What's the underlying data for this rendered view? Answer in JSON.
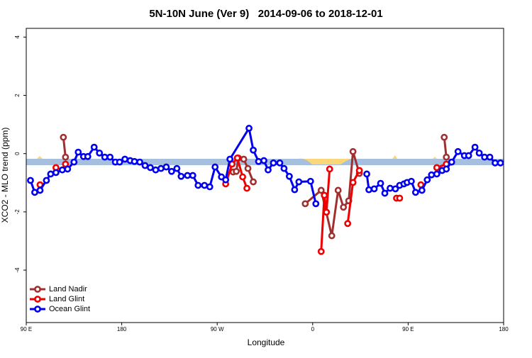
{
  "chart_data": {
    "type": "line",
    "title": "5N-10N June (Ver 9)   2014-09-06 to 2018-12-01",
    "x_label": "Longitude",
    "y_label": "XCO2 - MLO trend (ppm)",
    "xlim": [
      90,
      540
    ],
    "xticks": [
      {
        "value": 90,
        "label": "90 E"
      },
      180,
      {
        "value": 270,
        "label": "90 W"
      },
      {
        "value": 360,
        "label": "0"
      },
      {
        "value": 450,
        "label": "90 E"
      },
      {
        "value": 540,
        "label": "180"
      }
    ],
    "ylim": [
      -5.8,
      4.3
    ],
    "yticks": [
      -4,
      -2,
      0,
      2,
      4
    ],
    "legend": "bottomleft",
    "series": [
      {
        "name": "Land Nadir",
        "color": "#a03030",
        "x": [
          125,
          127,
          null,
          285,
          288,
          290,
          295,
          299,
          304,
          null,
          353,
          368,
          378,
          384,
          389,
          394,
          398,
          404,
          null,
          484,
          486
        ],
        "values": [
          0.56,
          -0.12,
          null,
          -0.63,
          -0.61,
          -0.15,
          -0.19,
          -0.51,
          -0.97,
          null,
          -1.72,
          -1.26,
          -2.82,
          -1.26,
          -1.84,
          -1.62,
          0.07,
          -0.68,
          null,
          0.56,
          -0.12
        ]
      },
      {
        "name": "Land Glint",
        "color": "#ee0000",
        "x": [
          103,
          null,
          118,
          null,
          127,
          null,
          278,
          284,
          289,
          294,
          298,
          null,
          368,
          371,
          373,
          376,
          null,
          393,
          398,
          404,
          null,
          439,
          442,
          null,
          462,
          null,
          477,
          486
        ],
        "values": [
          -1.07,
          null,
          -0.48,
          null,
          -0.36,
          null,
          -1.04,
          -0.36,
          -0.15,
          -0.8,
          -1.19,
          null,
          -3.36,
          -1.43,
          -2.01,
          -0.53,
          null,
          -2.4,
          -0.99,
          -0.58,
          null,
          -1.53,
          -1.53,
          null,
          -1.07,
          null,
          -0.48,
          -0.36
        ]
      },
      {
        "name": "Ocean Glint",
        "color": "#0000ee",
        "x": [
          94,
          98,
          103,
          109,
          113,
          118,
          124,
          129,
          135,
          139,
          144,
          148,
          154,
          159,
          164,
          169,
          174,
          178,
          183,
          188,
          192,
          197,
          202,
          207,
          212,
          217,
          222,
          227,
          232,
          236,
          242,
          247,
          252,
          258,
          263,
          268,
          274,
          278,
          282,
          300,
          304,
          309,
          314,
          318,
          323,
          329,
          333,
          338,
          343,
          347,
          358,
          363,
          null,
          411,
          413,
          418,
          424,
          428,
          433,
          438,
          442,
          446,
          449,
          453,
          457,
          463,
          468,
          472,
          477,
          482,
          486,
          491,
          497,
          503,
          507,
          513,
          517,
          522,
          527,
          532,
          537
        ],
        "values": [
          -0.92,
          -1.33,
          -1.26,
          -0.92,
          -0.7,
          -0.65,
          -0.56,
          -0.53,
          -0.29,
          0.05,
          -0.1,
          -0.1,
          0.22,
          0.02,
          -0.12,
          -0.12,
          -0.29,
          -0.29,
          -0.19,
          -0.24,
          -0.27,
          -0.29,
          -0.41,
          -0.48,
          -0.56,
          -0.51,
          -0.46,
          -0.61,
          -0.51,
          -0.78,
          -0.75,
          -0.75,
          -1.09,
          -1.09,
          -1.14,
          -0.46,
          -0.8,
          -0.9,
          -0.19,
          0.87,
          0.12,
          -0.27,
          -0.24,
          -0.56,
          -0.32,
          -0.32,
          -0.51,
          -0.78,
          -1.24,
          -0.97,
          -0.95,
          -1.72,
          null,
          -0.7,
          -1.24,
          -1.21,
          -1.02,
          -1.36,
          -1.19,
          -1.21,
          -1.09,
          -1.04,
          -0.99,
          -0.95,
          -1.33,
          -1.26,
          -0.9,
          -0.73,
          -0.7,
          -0.58,
          -0.53,
          -0.29,
          0.07,
          -0.07,
          -0.07,
          0.22,
          0.02,
          -0.12,
          -0.12,
          -0.32,
          -0.32
        ]
      }
    ]
  }
}
